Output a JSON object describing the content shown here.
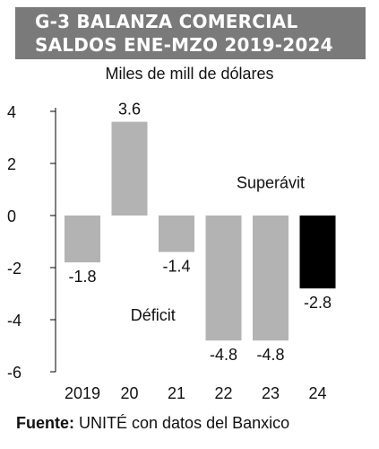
{
  "header": {
    "title_line1": "G-3 BALANZA COMERCIAL",
    "title_line2": "SALDOS ENE-MZO 2019-2024",
    "subtitle": "Miles de mill de dólares"
  },
  "source": {
    "label": "Fuente:",
    "text": "UNITÉ con datos del Banxico"
  },
  "colors": {
    "title_bg": "#7a7a7a",
    "bar": "#b3b3b3",
    "highlight_bar": "#000000"
  },
  "chart_data": {
    "type": "bar",
    "title": "G-3 BALANZA COMERCIAL SALDOS ENE-MZO 2019-2024",
    "ylabel": "Miles de mill de dólares",
    "categories": [
      "2019",
      "20",
      "21",
      "22",
      "23",
      "24"
    ],
    "values": [
      -1.8,
      3.6,
      -1.4,
      -4.8,
      -4.8,
      -2.8
    ],
    "value_labels": [
      "-1.8",
      "3.6",
      "-1.4",
      "-4.8",
      "-4.8",
      "-2.8"
    ],
    "highlight": [
      false,
      false,
      false,
      false,
      false,
      true
    ],
    "ylim": [
      -6,
      4
    ],
    "yticks": [
      4,
      2,
      0,
      -2,
      -4,
      -6
    ],
    "annotations": [
      {
        "text": "Superávit",
        "x": 4,
        "y": 1.3
      },
      {
        "text": "Déficit",
        "x": 1.5,
        "y": -3.8
      }
    ],
    "grid": false
  }
}
